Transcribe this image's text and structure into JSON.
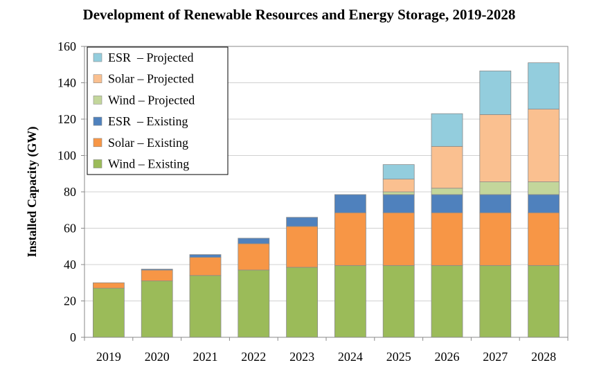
{
  "chart_data": {
    "type": "stacked-bar",
    "title": "Development of Renewable Resources and Energy Storage, 2019-2028",
    "xlabel": "",
    "ylabel": "Installed Capacity (GW)",
    "ylim": [
      0,
      160
    ],
    "yticks": [
      0,
      20,
      40,
      60,
      80,
      100,
      120,
      140,
      160
    ],
    "grid": true,
    "legend_position": "top-left",
    "categories": [
      "2019",
      "2020",
      "2021",
      "2022",
      "2023",
      "2024",
      "2025",
      "2026",
      "2027",
      "2028"
    ],
    "series": [
      {
        "name": "Wind – Existing",
        "color": "#9bbb59",
        "values": [
          27,
          31,
          34,
          37,
          38.5,
          39.5,
          39.5,
          39.5,
          39.5,
          39.5
        ]
      },
      {
        "name": "Solar – Existing",
        "color": "#f79646",
        "values": [
          3,
          6,
          10,
          14.5,
          22.5,
          29,
          29,
          29,
          29,
          29
        ]
      },
      {
        "name": "ESR  – Existing",
        "color": "#4f81bd",
        "values": [
          0,
          0.5,
          1.5,
          3,
          5,
          10,
          10,
          10,
          10,
          10
        ]
      },
      {
        "name": "Wind – Projected",
        "color": "#c3d69b",
        "values": [
          0,
          0,
          0,
          0,
          0,
          0,
          1.5,
          3.5,
          7,
          7
        ]
      },
      {
        "name": "Solar – Projected",
        "color": "#fac090",
        "values": [
          0,
          0,
          0,
          0,
          0,
          0,
          7,
          23,
          37,
          40
        ]
      },
      {
        "name": "ESR  – Projected",
        "color": "#93cddd",
        "values": [
          0,
          0,
          0,
          0,
          0,
          0,
          8,
          18,
          24,
          25.5
        ]
      }
    ],
    "legend_order": [
      5,
      4,
      3,
      2,
      1,
      0
    ]
  }
}
